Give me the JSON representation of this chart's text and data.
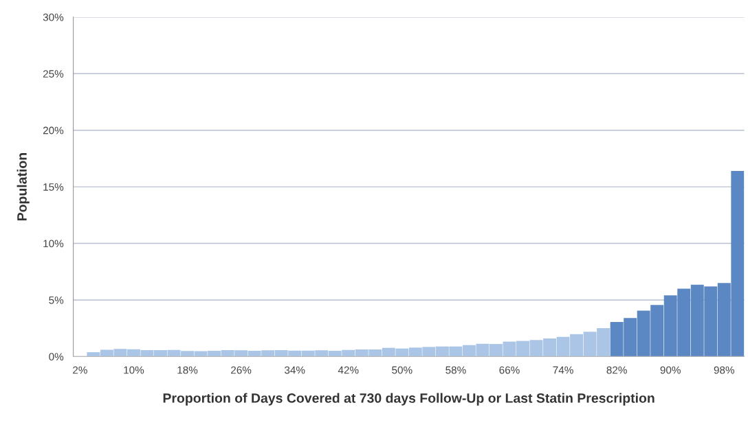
{
  "chart_data": {
    "type": "bar",
    "xlabel": "Proportion of Days Covered at 730 days Follow-Up or Last Statin Prescription",
    "ylabel": "Population",
    "categories": [
      "2%",
      null,
      null,
      null,
      "10%",
      null,
      null,
      null,
      "18%",
      null,
      null,
      null,
      "26%",
      null,
      null,
      null,
      "34%",
      null,
      null,
      null,
      "42%",
      null,
      null,
      null,
      "50%",
      null,
      null,
      null,
      "58%",
      null,
      null,
      null,
      "66%",
      null,
      null,
      null,
      "74%",
      null,
      null,
      null,
      "82%",
      null,
      null,
      null,
      "90%",
      null,
      null,
      null,
      "98%",
      null
    ],
    "values": [
      0,
      0.38,
      0.6,
      0.67,
      0.65,
      0.57,
      0.57,
      0.59,
      0.49,
      0.47,
      0.51,
      0.57,
      0.55,
      0.51,
      0.55,
      0.57,
      0.53,
      0.53,
      0.55,
      0.51,
      0.59,
      0.63,
      0.63,
      0.77,
      0.71,
      0.79,
      0.85,
      0.89,
      0.89,
      1.01,
      1.13,
      1.11,
      1.32,
      1.38,
      1.46,
      1.6,
      1.74,
      1.98,
      2.19,
      2.51,
      3.06,
      3.4,
      4.05,
      4.55,
      5.4,
      6.0,
      6.35,
      6.2,
      6.5,
      16.4
    ],
    "colors": [
      "#aac5e5",
      "#aac5e5",
      "#aac5e5",
      "#aac5e5",
      "#aac5e5",
      "#aac5e5",
      "#aac5e5",
      "#aac5e5",
      "#aac5e5",
      "#aac5e5",
      "#aac5e5",
      "#aac5e5",
      "#aac5e5",
      "#aac5e5",
      "#aac5e5",
      "#aac5e5",
      "#aac5e5",
      "#aac5e5",
      "#aac5e5",
      "#aac5e5",
      "#aac5e5",
      "#aac5e5",
      "#aac5e5",
      "#aac5e5",
      "#aac5e5",
      "#aac5e5",
      "#aac5e5",
      "#aac5e5",
      "#aac5e5",
      "#aac5e5",
      "#aac5e5",
      "#aac5e5",
      "#aac5e5",
      "#aac5e5",
      "#aac5e5",
      "#aac5e5",
      "#aac5e5",
      "#aac5e5",
      "#aac5e5",
      "#aac5e5",
      "#5b87c3",
      "#5b87c3",
      "#5b87c3",
      "#5b87c3",
      "#5b87c3",
      "#5b87c3",
      "#5b87c3",
      "#5b87c3",
      "#5b87c3",
      "#5b87c3"
    ],
    "ylim": [
      0,
      30
    ],
    "yticks": [
      {
        "value": 0,
        "label": "0%"
      },
      {
        "value": 5,
        "label": "5%"
      },
      {
        "value": 10,
        "label": "10%"
      },
      {
        "value": 15,
        "label": "15%"
      },
      {
        "value": 20,
        "label": "20%"
      },
      {
        "value": 25,
        "label": "25%"
      },
      {
        "value": 30,
        "label": "30%"
      }
    ],
    "grid": "y",
    "legend": false
  }
}
